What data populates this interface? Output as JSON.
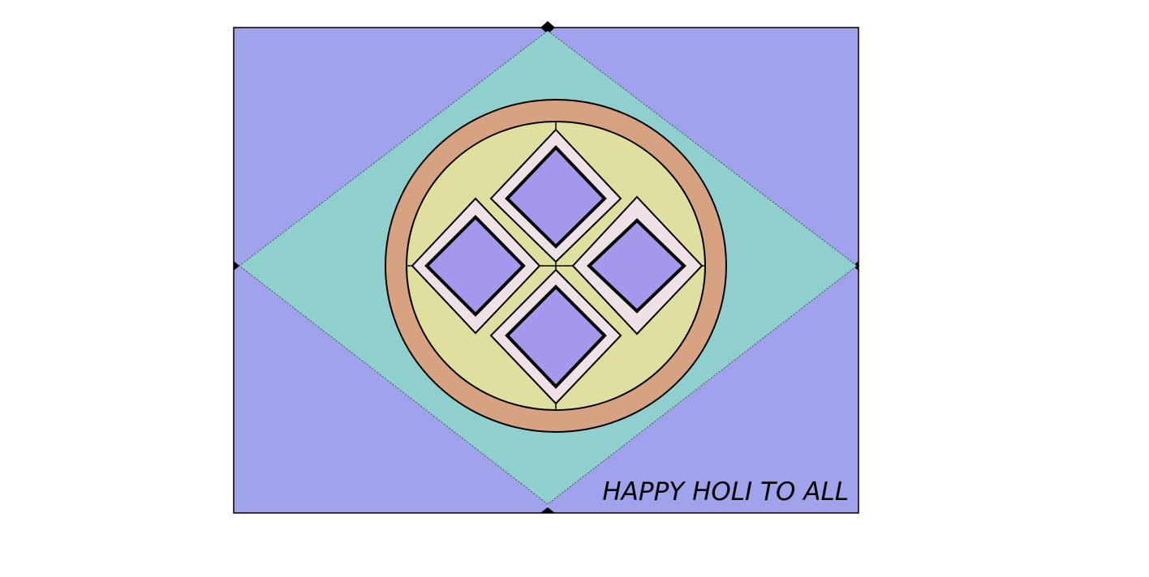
{
  "greeting": "HAPPY HOLI TO ALL",
  "colors": {
    "background": "#ffffff",
    "corner_panels": "#a0a3ec",
    "diamond": "#8fd0cf",
    "outer_ring": "#d6a282",
    "inner_disc": "#dfe0a0",
    "tile_border": "#f0e1e6",
    "tile_fill": "#a597ec",
    "outline": "#000000"
  },
  "shapes": {
    "card": "rectangle",
    "center_shape": "rhombus",
    "rings": "concentric circles",
    "tiles": [
      "top-tile",
      "left-tile",
      "right-tile",
      "bottom-tile"
    ]
  }
}
